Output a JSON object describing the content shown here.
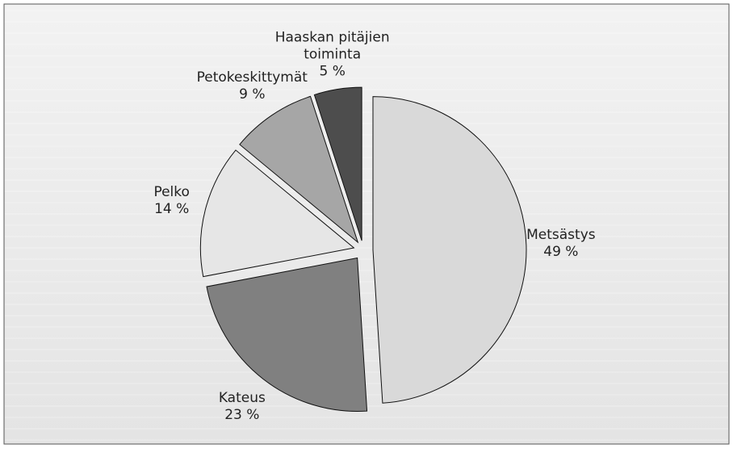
{
  "chart_data": {
    "type": "pie",
    "categories": [
      "Metsästys",
      "Kateus",
      "Pelko",
      "Petokeskittymät",
      "Haaskan pitäjien toiminta"
    ],
    "values": [
      49,
      23,
      14,
      9,
      5
    ],
    "value_labels": [
      "49 %",
      "23 %",
      "14 %",
      "9 %",
      "5 %"
    ],
    "colors": [
      "#d9d9d9",
      "#808080",
      "#e6e6e6",
      "#a6a6a6",
      "#4d4d4d"
    ]
  }
}
